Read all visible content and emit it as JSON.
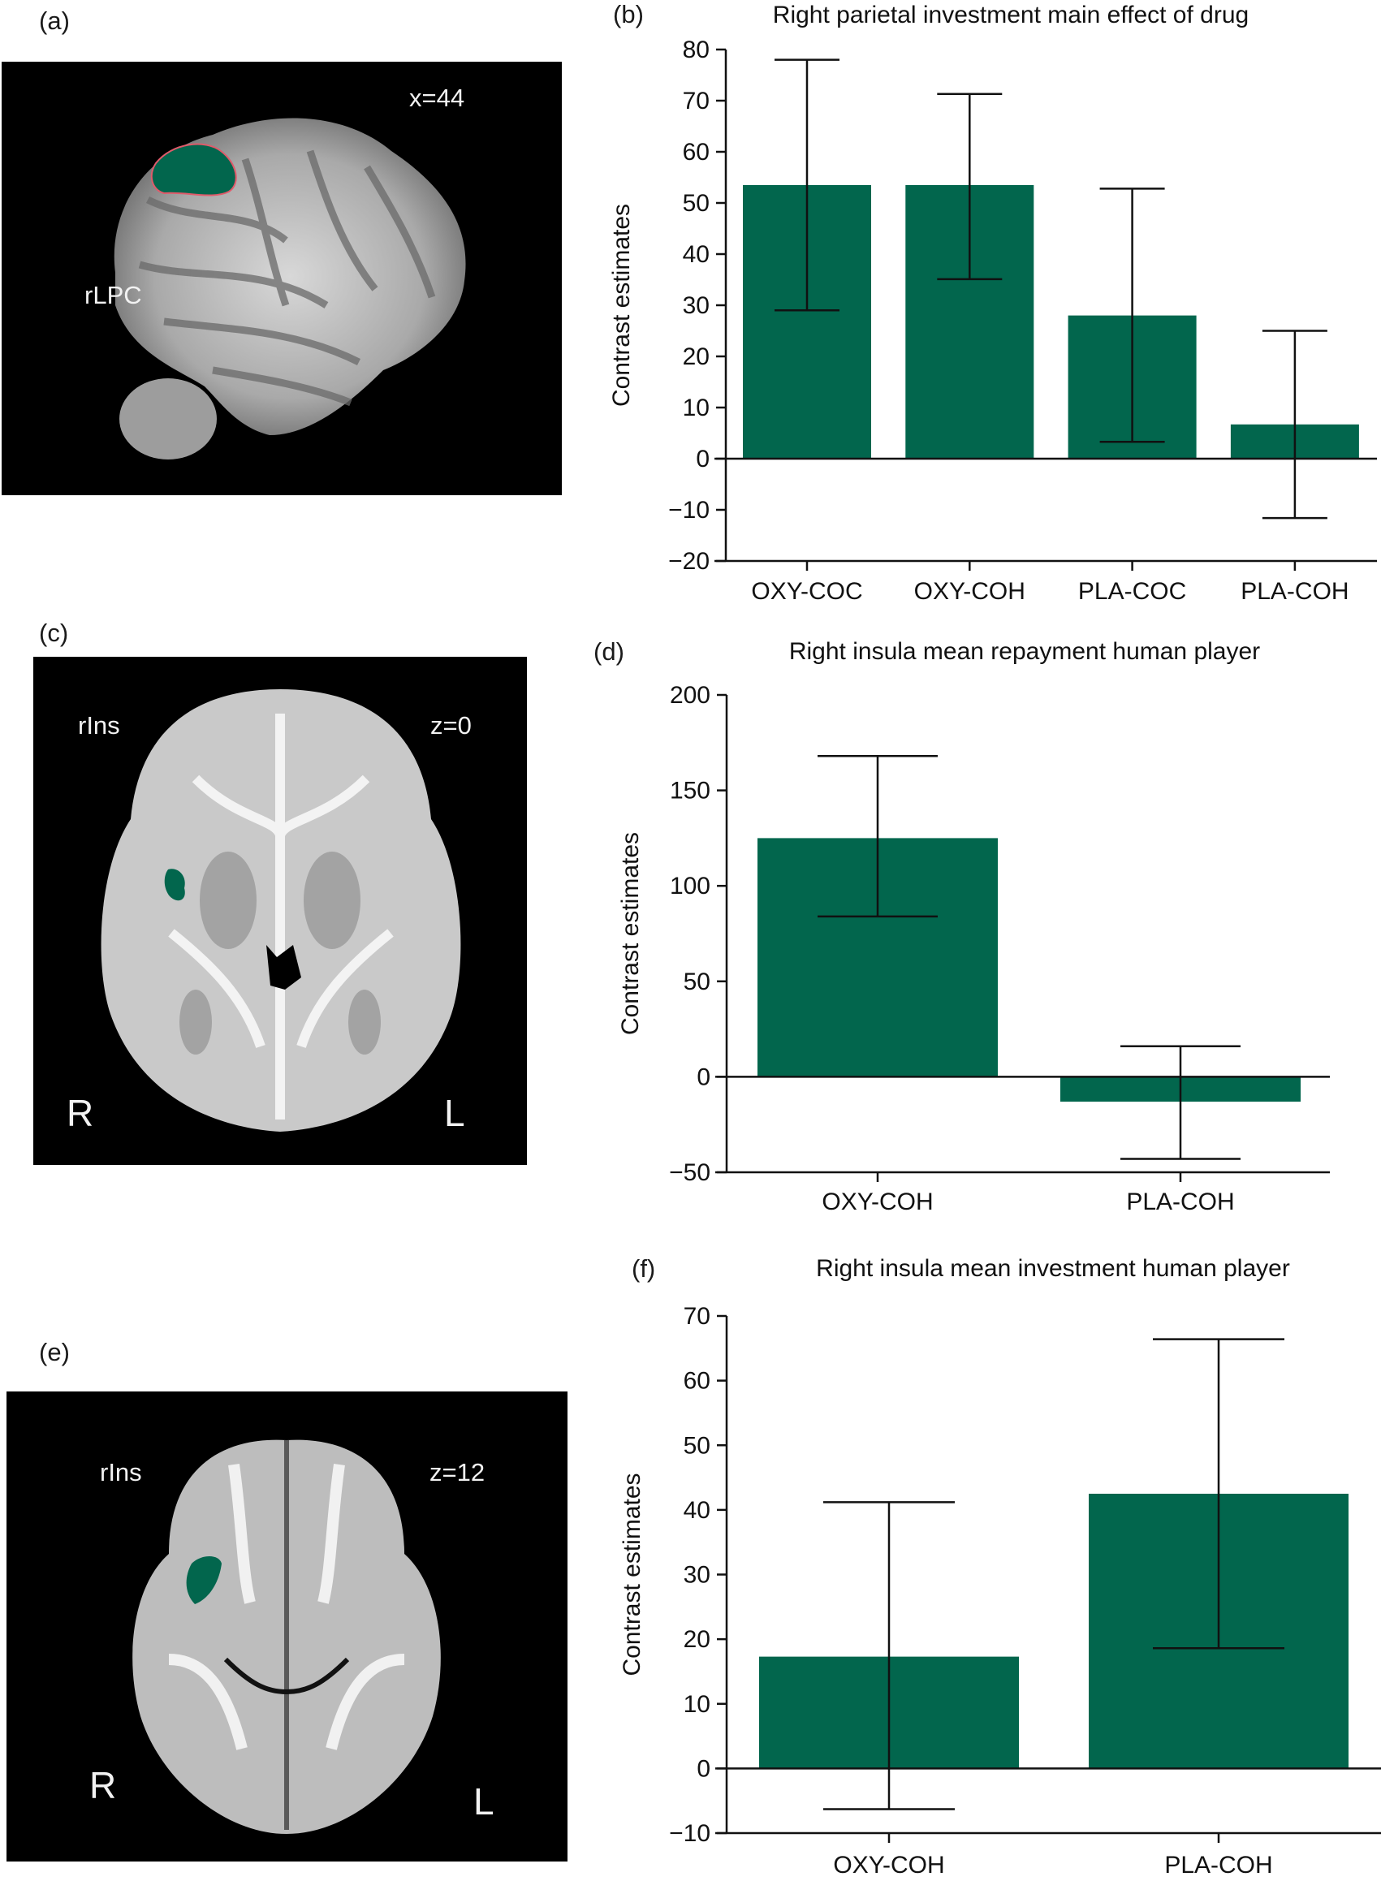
{
  "colors": {
    "bar": "#02664d",
    "axis": "#111111",
    "background": "#ffffff",
    "brain_bg": "#000000"
  },
  "panels": {
    "a": {
      "label": "(a)",
      "roi": "rLPC",
      "coord": "x=44"
    },
    "b": {
      "label": "(b)"
    },
    "c": {
      "label": "(c)",
      "roi": "rIns",
      "coord": "z=0",
      "left_side": "R",
      "right_side": "L"
    },
    "d": {
      "label": "(d)"
    },
    "e": {
      "label": "(e)",
      "roi": "rIns",
      "coord": "z=12",
      "left_side": "R",
      "right_side": "L"
    },
    "f": {
      "label": "(f)"
    }
  },
  "chart_data": [
    {
      "id": "b",
      "type": "bar",
      "title": "Right parietal investment main effect of drug",
      "xlabel": "",
      "ylabel": "Contrast estimates",
      "categories": [
        "OXY-COC",
        "OXY-COH",
        "PLA-COC",
        "PLA-COH"
      ],
      "values": [
        53.5,
        53.5,
        28,
        6.7
      ],
      "error_upper": [
        78,
        71.3,
        52.8,
        25
      ],
      "error_lower": [
        29,
        35.1,
        3.3,
        -11.6
      ],
      "yticks": [
        -20,
        -10,
        0,
        10,
        20,
        30,
        40,
        50,
        60,
        70,
        80
      ],
      "ylim": [
        -20,
        80
      ],
      "grid": false,
      "legend": null
    },
    {
      "id": "d",
      "type": "bar",
      "title": "Right insula mean repayment human player",
      "xlabel": "",
      "ylabel": "Contrast estimates",
      "categories": [
        "OXY-COH",
        "PLA-COH"
      ],
      "values": [
        125,
        -13
      ],
      "error_upper": [
        168,
        16
      ],
      "error_lower": [
        84,
        -43
      ],
      "yticks": [
        -50,
        0,
        50,
        100,
        150,
        200
      ],
      "ylim": [
        -50,
        200
      ],
      "grid": false,
      "legend": null
    },
    {
      "id": "f",
      "type": "bar",
      "title": "Right insula mean investment human player",
      "xlabel": "",
      "ylabel": "Contrast estimates",
      "categories": [
        "OXY-COH",
        "PLA-COH"
      ],
      "values": [
        17.3,
        42.5
      ],
      "error_upper": [
        41.2,
        66.4
      ],
      "error_lower": [
        -6.3,
        18.6
      ],
      "yticks": [
        -10,
        0,
        10,
        20,
        30,
        40,
        50,
        60,
        70
      ],
      "ylim": [
        -10,
        70
      ],
      "grid": false,
      "legend": null
    }
  ]
}
